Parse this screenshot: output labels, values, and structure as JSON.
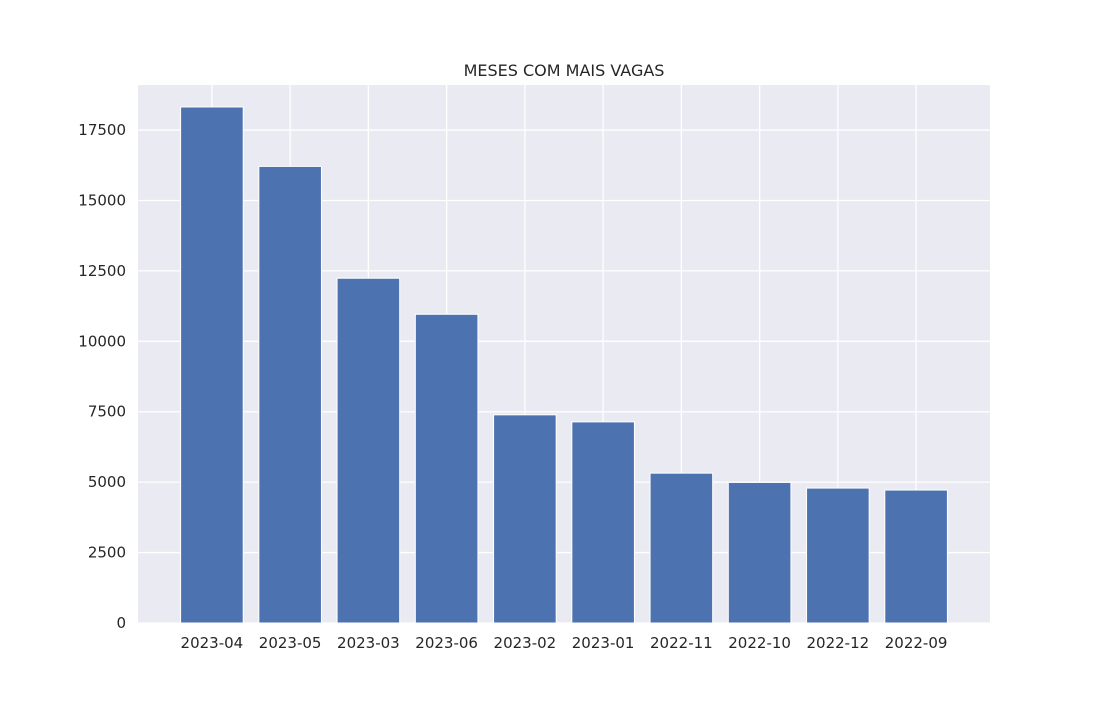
{
  "chart_data": {
    "type": "bar",
    "title": "MESES COM MAIS VAGAS",
    "xlabel": "",
    "ylabel": "",
    "categories": [
      "2023-04",
      "2023-05",
      "2023-03",
      "2023-06",
      "2023-02",
      "2023-01",
      "2022-11",
      "2022-10",
      "2022-12",
      "2022-09"
    ],
    "values": [
      18320,
      16210,
      12240,
      10960,
      7390,
      7140,
      5320,
      4990,
      4790,
      4720
    ],
    "ylim": [
      0,
      19100
    ],
    "yticks": [
      0,
      2500,
      5000,
      7500,
      10000,
      12500,
      15000,
      17500
    ],
    "ytick_labels": [
      "0",
      "2500",
      "5000",
      "7500",
      "10000",
      "12500",
      "15000",
      "17500"
    ],
    "grid": true,
    "legend": "none",
    "colors": {
      "bar": "#4c72b0",
      "plot_background": "#eaeaf2",
      "grid": "#ffffff",
      "text": "#262626"
    }
  }
}
